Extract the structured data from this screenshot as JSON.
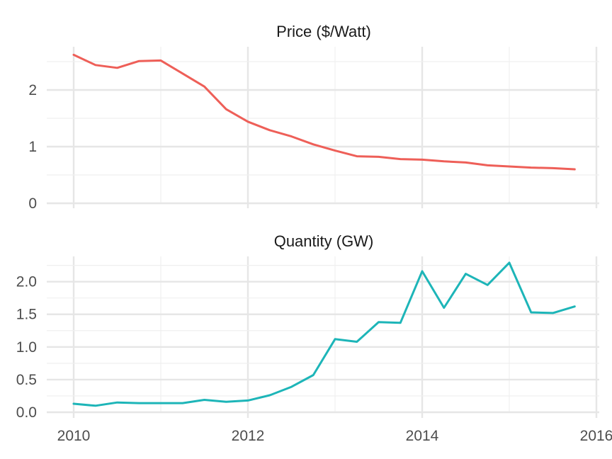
{
  "chart_data": [
    {
      "type": "line",
      "title": "Price ($/Watt)",
      "xlabel": "",
      "ylabel": "",
      "x_range": [
        2010,
        2016
      ],
      "ylim": [
        0,
        2.65
      ],
      "y_ticks": [
        0,
        1,
        2
      ],
      "y_tick_labels": [
        "0",
        "1",
        "2"
      ],
      "grid": true,
      "series": [
        {
          "color": "#ee5f58",
          "x": [
            2010.0,
            2010.25,
            2010.5,
            2010.75,
            2011.0,
            2011.25,
            2011.5,
            2011.75,
            2012.0,
            2012.25,
            2012.5,
            2012.75,
            2013.0,
            2013.25,
            2013.5,
            2013.75,
            2014.0,
            2014.25,
            2014.5,
            2014.75,
            2015.0,
            2015.25,
            2015.5,
            2015.75
          ],
          "y": [
            2.62,
            2.44,
            2.39,
            2.51,
            2.52,
            2.29,
            2.06,
            1.66,
            1.44,
            1.29,
            1.18,
            1.04,
            0.93,
            0.83,
            0.82,
            0.78,
            0.77,
            0.74,
            0.72,
            0.67,
            0.65,
            0.63,
            0.62,
            0.6
          ]
        }
      ]
    },
    {
      "type": "line",
      "title": "Quantity (GW)",
      "xlabel": "",
      "ylabel": "",
      "x_range": [
        2010,
        2016
      ],
      "ylim": [
        0,
        2.3
      ],
      "y_ticks": [
        0,
        0.5,
        1,
        1.5,
        2
      ],
      "y_tick_labels": [
        "0.0",
        "0.5",
        "1.0",
        "1.5",
        "2.0"
      ],
      "x_ticks": [
        2010,
        2012,
        2014,
        2016
      ],
      "x_tick_labels": [
        "2010",
        "2012",
        "2014",
        "2016"
      ],
      "grid": true,
      "series": [
        {
          "color": "#1db5b8",
          "x": [
            2010.0,
            2010.25,
            2010.5,
            2010.75,
            2011.0,
            2011.25,
            2011.5,
            2011.75,
            2012.0,
            2012.25,
            2012.5,
            2012.75,
            2013.0,
            2013.25,
            2013.5,
            2013.75,
            2014.0,
            2014.25,
            2014.5,
            2014.75,
            2015.0,
            2015.25,
            2015.5,
            2015.75
          ],
          "y": [
            0.13,
            0.1,
            0.15,
            0.14,
            0.14,
            0.14,
            0.19,
            0.16,
            0.18,
            0.26,
            0.39,
            0.57,
            1.12,
            1.08,
            1.38,
            1.37,
            2.16,
            1.6,
            2.12,
            1.95,
            2.29,
            1.53,
            1.52,
            1.62
          ]
        }
      ]
    }
  ]
}
